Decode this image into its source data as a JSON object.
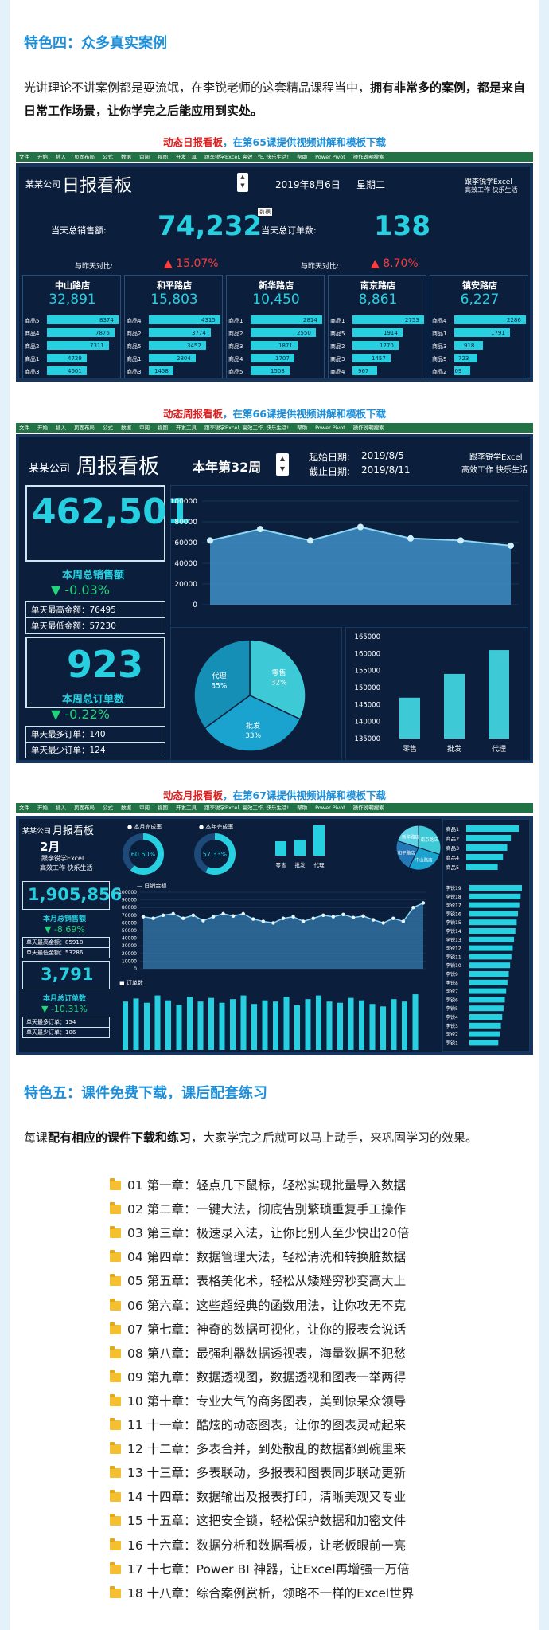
{
  "section4": {
    "heading": "特色四：众多真实案例",
    "para_a": "光讲理论不讲案例都是耍流氓，在李锐老师的这套精品课程当中，",
    "para_b": "拥有非常多的案例，都是来自日常工作场景，让你学完之后能应用到实处。"
  },
  "ribbon": {
    "items": [
      "文件",
      "开始",
      "插入",
      "页面布局",
      "公式",
      "数据",
      "审阅",
      "视图",
      "开发工具",
      "跟李锐学Excel, 高效工作, 快乐生活!",
      "帮助",
      "Power Pivot",
      "操作说明搜索"
    ]
  },
  "daily": {
    "cap_red": "动态日报看板",
    "cap_blue": "，在第65课提供视频讲解和模板下载",
    "company": "某某公司",
    "title": "日报看板",
    "date": "2019年8月6日",
    "weekday": "星期二",
    "brand1": "跟李锐学Excel",
    "brand2": "高效工作 快乐生活",
    "sales_label": "当天总销售额:",
    "sales_value": "74,232",
    "orders_label": "当天总订单数:",
    "orders_value": "138",
    "tag": "数据",
    "cmp_label": "与昨天对比:",
    "sales_cmp": "▲ 15.07%",
    "orders_cmp": "▲ 8.70%",
    "stores": [
      {
        "name": "中山路店",
        "total": "32,891",
        "rows": [
          [
            "商品5",
            "8374"
          ],
          [
            "商品4",
            "7876"
          ],
          [
            "商品2",
            "7311"
          ],
          [
            "商品1",
            "4729"
          ],
          [
            "商品3",
            "4601"
          ]
        ],
        "bars": [
          1,
          0.94,
          0.87,
          0.56,
          0.55
        ]
      },
      {
        "name": "和平路店",
        "total": "15,803",
        "rows": [
          [
            "商品4",
            "4315"
          ],
          [
            "商品2",
            "3774"
          ],
          [
            "商品5",
            "3452"
          ],
          [
            "商品1",
            "2804"
          ],
          [
            "商品3",
            "1458"
          ]
        ],
        "bars": [
          1,
          0.87,
          0.8,
          0.65,
          0.34
        ]
      },
      {
        "name": "新华路店",
        "total": "10,450",
        "rows": [
          [
            "商品1",
            "2814"
          ],
          [
            "商品2",
            "2550"
          ],
          [
            "商品3",
            "1871"
          ],
          [
            "商品4",
            "1707"
          ],
          [
            "商品5",
            "1508"
          ]
        ],
        "bars": [
          1,
          0.91,
          0.66,
          0.61,
          0.54
        ]
      },
      {
        "name": "南京路店",
        "total": "8,861",
        "rows": [
          [
            "商品1",
            "2753"
          ],
          [
            "商品5",
            "1914"
          ],
          [
            "商品2",
            "1770"
          ],
          [
            "商品3",
            "1457"
          ],
          [
            "商品4",
            "967"
          ]
        ],
        "bars": [
          1,
          0.7,
          0.64,
          0.53,
          0.35
        ]
      },
      {
        "name": "镇安路店",
        "total": "6,227",
        "rows": [
          [
            "商品4",
            "2286"
          ],
          [
            "商品1",
            "1791"
          ],
          [
            "商品3",
            "918"
          ],
          [
            "商品5",
            "723"
          ],
          [
            "商品2",
            "509"
          ]
        ],
        "bars": [
          1,
          0.78,
          0.4,
          0.32,
          0.22
        ]
      }
    ]
  },
  "weekly": {
    "cap_red": "动态周报看板",
    "cap_blue": "，在第66课提供视频讲解和模板下载",
    "company": "某某公司",
    "title": "周报看板",
    "week": "本年第32周",
    "start_label": "起始日期:",
    "start": "2019/8/5",
    "end_label": "截止日期:",
    "end": "2019/8/11",
    "brand1": "跟李锐学Excel",
    "brand2": "高效工作 快乐生活",
    "sales_value": "462,501",
    "sales_label": "本周总销售额",
    "sales_cmp": "▼ -0.03%",
    "max_day": "单天最高金额：76495",
    "min_day": "单天最低金额：57230",
    "orders_value": "923",
    "orders_label": "本周总订单数",
    "orders_cmp": "▼ -0.22%",
    "max_ord": "单天最多订单：140",
    "min_ord": "单天最少订单：124"
  },
  "weekly_area": {
    "type": "area",
    "y_ticks": [
      "100000",
      "80000",
      "60000",
      "40000",
      "20000",
      "0"
    ],
    "values": [
      62000,
      73000,
      62000,
      75000,
      64000,
      62000,
      57000
    ],
    "ylim": [
      0,
      100000
    ]
  },
  "weekly_pie": {
    "type": "pie",
    "labels": [
      "零售",
      "批发",
      "代理"
    ],
    "values": [
      32,
      33,
      35
    ],
    "pct": [
      "32%",
      "33%",
      "35%"
    ],
    "colors": [
      "#3ec9d6",
      "#1aa3cf",
      "#168fb6"
    ]
  },
  "weekly_bar": {
    "type": "bar",
    "categories": [
      "零售",
      "批发",
      "代理"
    ],
    "values": [
      147000,
      154000,
      161000
    ],
    "y_ticks": [
      "165000",
      "160000",
      "155000",
      "150000",
      "145000",
      "140000",
      "135000"
    ],
    "ylim": [
      135000,
      165000
    ]
  },
  "monthly": {
    "cap_red": "动态月报看板",
    "cap_blue": "，在第67课提供视频讲解和模板下载",
    "company": "某某公司",
    "title": "月报看板",
    "month": "2月",
    "brand1": "跟李锐学Excel",
    "brand2": "高效工作 快乐生活",
    "sales_value": "1,905,856",
    "sales_label": "本月总销售额",
    "sales_cmp": "▼ -8.69%",
    "max_day": "单天最高金额：85918",
    "min_day": "单天最低金额：53286",
    "orders_value": "3,791",
    "orders_label": "本月总订单数",
    "orders_cmp": "▼ -10.31%",
    "max_ord": "单天最多订单：154",
    "min_ord": "单天最少订单：106",
    "ring1_label": "本月完成率",
    "ring1": "60.50%",
    "ring2_label": "本年完成率",
    "ring2": "57.33%",
    "bar_cats": [
      "零售",
      "批发",
      "代理"
    ],
    "pie_labels": [
      "南京路店",
      "中山路店",
      "和平路店",
      "新华路店"
    ],
    "line_title": "日销金额",
    "bar_title": "订单数",
    "right_products": [
      "商品1",
      "商品2",
      "商品3",
      "商品4",
      "商品5"
    ],
    "right_people": [
      "李锐19",
      "李锐18",
      "李锐17",
      "李锐16",
      "李锐15",
      "李锐14",
      "李锐13",
      "李锐12",
      "李锐11",
      "李锐10",
      "李锐9",
      "李锐8",
      "李锐7",
      "李锐6",
      "李锐5",
      "李锐4",
      "李锐3",
      "李锐2",
      "李锐1"
    ],
    "line_ticks": [
      "100000",
      "90000",
      "80000",
      "70000",
      "60000",
      "50000",
      "40000",
      "30000",
      "20000",
      "10000",
      "0"
    ]
  },
  "section5": {
    "heading": "特色五：课件免费下载，课后配套练习",
    "para_a": "每课",
    "para_b": "配有相应的课件下载和练习",
    "para_c": "，大家学完之后就可以马上动手，来巩固学习的效果。"
  },
  "toc": [
    "01 第一章：轻点几下鼠标，轻松实现批量导入数据",
    "02 第二章：一键大法，彻底告别繁琐重复手工操作",
    "03 第三章：极速录入法，让你比别人至少快出20倍",
    "04 第四章：数据管理大法，轻松清洗和转换脏数据",
    "05 第五章：表格美化术，轻松从矮矬穷秒变高大上",
    "06 第六章：这些超经典的函数用法，让你攻无不克",
    "07 第七章：神奇的数据可视化，让你的报表会说话",
    "08 第八章：最强利器数据透视表，海量数据不犯愁",
    "09 第九章：数据透视图，数据透视和图表一举两得",
    "10 第十章：专业大气的商务图表，美到惊呆众领导",
    "11 十一章：酷炫的动态图表，让你的图表灵动起来",
    "12 十二章：多表合并，到处散乱的数据都到碗里来",
    "13 十三章：多表联动，多报表和图表同步联动更新",
    "14 十四章：数据输出及报表打印，清晰美观又专业",
    "15 十五章：这把安全锁，轻松保护数据和加密文件",
    "16 十六章：数据分析和数据看板，让老板眼前一亮",
    "17 十七章：Power BI 神器，让Excel再增强一万倍",
    "18 十八章：综合案例赏析，领略不一样的Excel世界"
  ]
}
